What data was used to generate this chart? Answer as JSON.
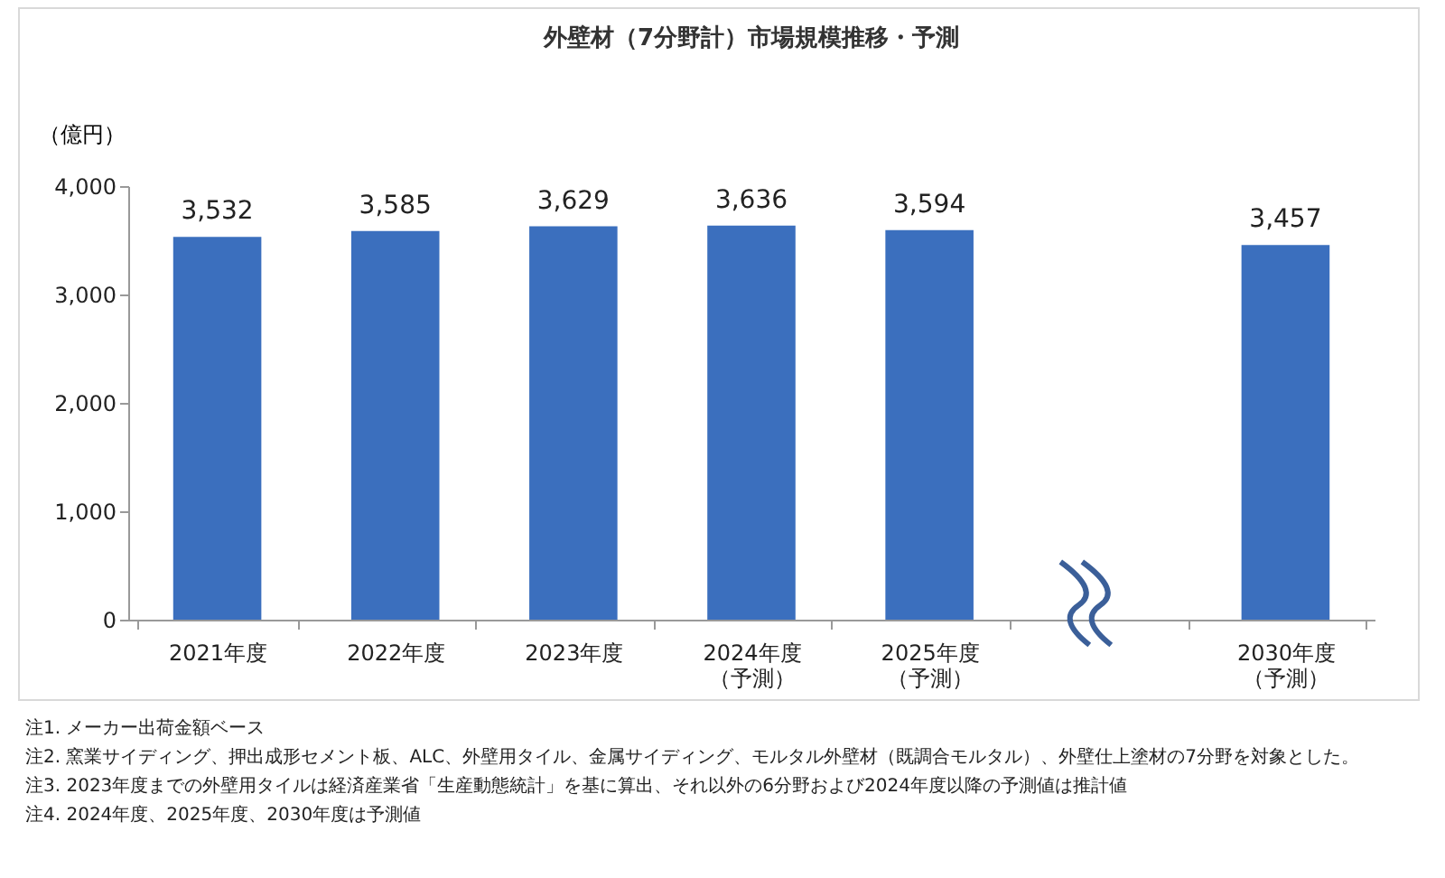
{
  "chart_data": {
    "type": "bar",
    "title": "外壁材（7分野計）市場規模推移・予測",
    "ylabel": "（億円）",
    "categories": [
      "2021年度",
      "2022年度",
      "2023年度",
      "2024年度（予測）",
      "2025年度（予測）",
      null,
      "2030年度（予測）"
    ],
    "values": [
      3532,
      3585,
      3629,
      3636,
      3594,
      null,
      3457
    ],
    "value_labels": [
      "3,532",
      "3,585",
      "3,629",
      "3,636",
      "3,594",
      null,
      "3,457"
    ],
    "color": "#3b6fbe",
    "ylim": [
      0,
      4000
    ],
    "yticks": [
      {
        "value": 0,
        "label": "0"
      },
      {
        "value": 1000,
        "label": "1,000"
      },
      {
        "value": 2000,
        "label": "2,000"
      },
      {
        "value": 3000,
        "label": "3,000"
      },
      {
        "value": 4000,
        "label": "4,000"
      }
    ],
    "grid": false,
    "annotations": [
      "注1. メーカー出荷金額ベース",
      "注2. 窯業サイディング、押出成形セメント板、ALC、外壁用タイル、金属サイディング、モルタル外壁材（既調合モルタル）、外壁仕上塗材の7分野を対象とした。",
      "注3. 2023年度までの外壁用タイルは経済産業省「生産動態統計」を基に算出、それ以外の6分野および2024年度以降の予測値は推計値",
      "注4. 2024年度、2025年度、2030年度は予測値"
    ]
  }
}
